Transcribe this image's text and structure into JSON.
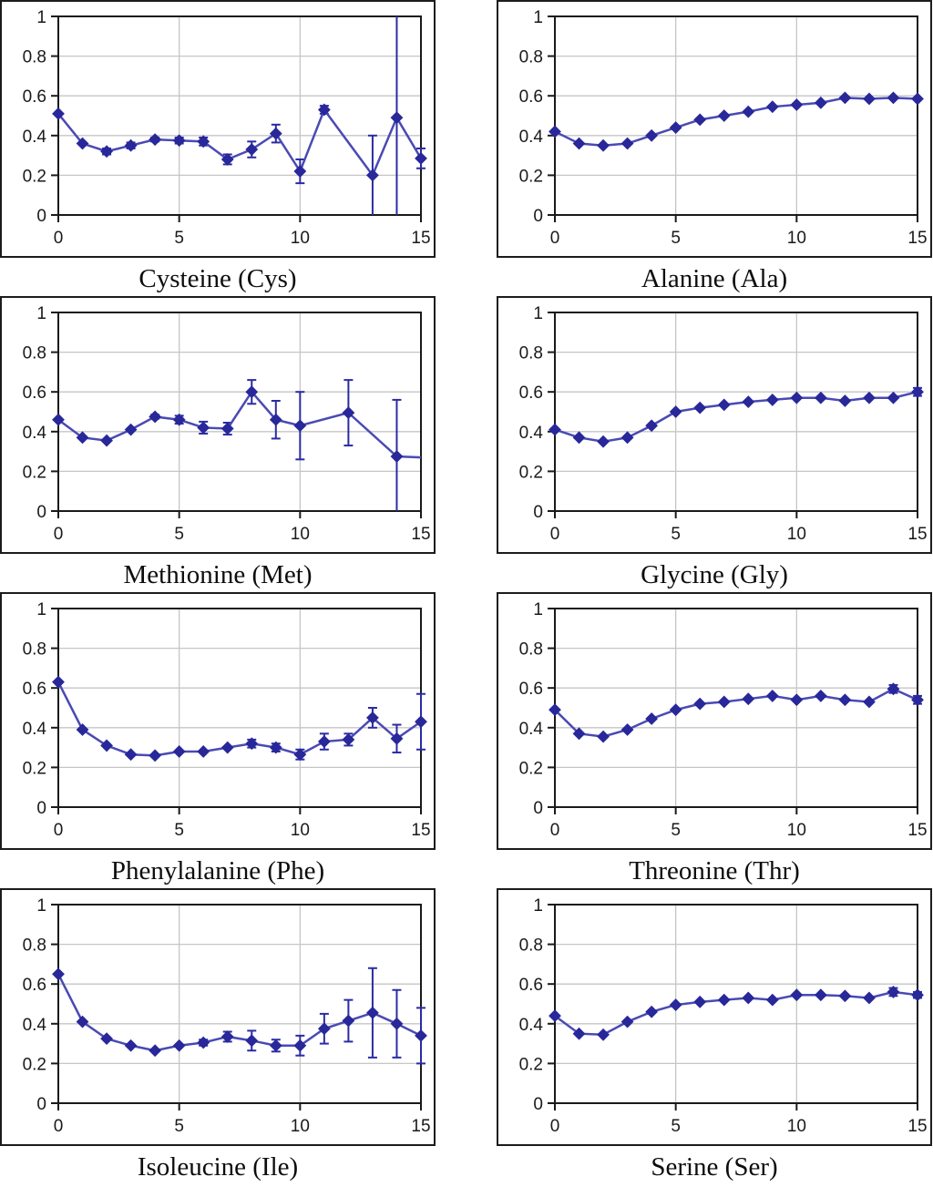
{
  "colors": {
    "marker": "#28289A",
    "line": "#4A4AB4",
    "error_bar": "#2B2BA4",
    "grid": "#C6C6C6",
    "axis": "#1A1A1A",
    "tick_label": "#1A1A1A"
  },
  "chart_data": [
    {
      "type": "line",
      "title": "Cysteine (Cys)",
      "xlabel": "",
      "ylabel": "",
      "xlim": [
        0,
        15
      ],
      "ylim": [
        0,
        1
      ],
      "xticks": [
        0,
        5,
        10,
        15
      ],
      "yticks": [
        0,
        0.2,
        0.4,
        0.6,
        0.8,
        1
      ],
      "grid": true,
      "marker": "diamond",
      "error_bars": true,
      "legend": "none",
      "points": [
        {
          "x": 0,
          "y": 0.51,
          "e": 0
        },
        {
          "x": 1,
          "y": 0.36,
          "e": 0
        },
        {
          "x": 2,
          "y": 0.32,
          "e": 0.015
        },
        {
          "x": 3,
          "y": 0.35,
          "e": 0.015
        },
        {
          "x": 4,
          "y": 0.38,
          "e": 0.01
        },
        {
          "x": 5,
          "y": 0.375,
          "e": 0.015
        },
        {
          "x": 6,
          "y": 0.37,
          "e": 0.02
        },
        {
          "x": 7,
          "y": 0.28,
          "e": 0.025
        },
        {
          "x": 8,
          "y": 0.33,
          "e": 0.04
        },
        {
          "x": 9,
          "y": 0.41,
          "e": 0.045
        },
        {
          "x": 10,
          "y": 0.22,
          "e": 0.06
        },
        {
          "x": 11,
          "y": 0.53,
          "e": 0.02
        },
        {
          "x": 13,
          "y": 0.2,
          "e": 0.2
        },
        {
          "x": 14,
          "y": 0.49,
          "e": 0.51
        },
        {
          "x": 15,
          "y": 0.285,
          "e": 0.05
        }
      ]
    },
    {
      "type": "line",
      "title": "Alanine (Ala)",
      "xlabel": "",
      "ylabel": "",
      "xlim": [
        0,
        15
      ],
      "ylim": [
        0,
        1
      ],
      "xticks": [
        0,
        5,
        10,
        15
      ],
      "yticks": [
        0,
        0.2,
        0.4,
        0.6,
        0.8,
        1
      ],
      "grid": true,
      "marker": "diamond",
      "error_bars": true,
      "legend": "none",
      "points": [
        {
          "x": 0,
          "y": 0.42,
          "e": 0
        },
        {
          "x": 1,
          "y": 0.36,
          "e": 0
        },
        {
          "x": 2,
          "y": 0.35,
          "e": 0
        },
        {
          "x": 3,
          "y": 0.36,
          "e": 0
        },
        {
          "x": 4,
          "y": 0.4,
          "e": 0
        },
        {
          "x": 5,
          "y": 0.44,
          "e": 0
        },
        {
          "x": 6,
          "y": 0.48,
          "e": 0
        },
        {
          "x": 7,
          "y": 0.5,
          "e": 0
        },
        {
          "x": 8,
          "y": 0.52,
          "e": 0
        },
        {
          "x": 9,
          "y": 0.545,
          "e": 0
        },
        {
          "x": 10,
          "y": 0.555,
          "e": 0
        },
        {
          "x": 11,
          "y": 0.565,
          "e": 0
        },
        {
          "x": 12,
          "y": 0.59,
          "e": 0
        },
        {
          "x": 13,
          "y": 0.585,
          "e": 0
        },
        {
          "x": 14,
          "y": 0.59,
          "e": 0
        },
        {
          "x": 15,
          "y": 0.585,
          "e": 0
        }
      ]
    },
    {
      "type": "line",
      "title": "Methionine (Met)",
      "xlabel": "",
      "ylabel": "",
      "xlim": [
        0,
        15
      ],
      "ylim": [
        0,
        1
      ],
      "xticks": [
        0,
        5,
        10,
        15
      ],
      "yticks": [
        0,
        0.2,
        0.4,
        0.6,
        0.8,
        1
      ],
      "grid": true,
      "marker": "diamond",
      "error_bars": true,
      "legend": "none",
      "points": [
        {
          "x": 0,
          "y": 0.46,
          "e": 0
        },
        {
          "x": 1,
          "y": 0.37,
          "e": 0
        },
        {
          "x": 2,
          "y": 0.355,
          "e": 0
        },
        {
          "x": 3,
          "y": 0.41,
          "e": 0
        },
        {
          "x": 4,
          "y": 0.475,
          "e": 0.01
        },
        {
          "x": 5,
          "y": 0.46,
          "e": 0.02
        },
        {
          "x": 6,
          "y": 0.42,
          "e": 0.03
        },
        {
          "x": 7,
          "y": 0.415,
          "e": 0.03
        },
        {
          "x": 8,
          "y": 0.6,
          "e": 0.06
        },
        {
          "x": 9,
          "y": 0.46,
          "e": 0.095
        },
        {
          "x": 10,
          "y": 0.43,
          "e": 0.17
        },
        {
          "x": 12,
          "y": 0.495,
          "e": 0.165
        },
        {
          "x": 14,
          "y": 0.275,
          "e": 0.285
        },
        {
          "x": 15,
          "y": 0.27,
          "e": 0,
          "m": false
        }
      ]
    },
    {
      "type": "line",
      "title": "Glycine (Gly)",
      "xlabel": "",
      "ylabel": "",
      "xlim": [
        0,
        15
      ],
      "ylim": [
        0,
        1
      ],
      "xticks": [
        0,
        5,
        10,
        15
      ],
      "yticks": [
        0,
        0.2,
        0.4,
        0.6,
        0.8,
        1
      ],
      "grid": true,
      "marker": "diamond",
      "error_bars": true,
      "legend": "none",
      "points": [
        {
          "x": 0,
          "y": 0.41,
          "e": 0
        },
        {
          "x": 1,
          "y": 0.37,
          "e": 0
        },
        {
          "x": 2,
          "y": 0.35,
          "e": 0
        },
        {
          "x": 3,
          "y": 0.37,
          "e": 0
        },
        {
          "x": 4,
          "y": 0.43,
          "e": 0
        },
        {
          "x": 5,
          "y": 0.5,
          "e": 0
        },
        {
          "x": 6,
          "y": 0.52,
          "e": 0
        },
        {
          "x": 7,
          "y": 0.535,
          "e": 0
        },
        {
          "x": 8,
          "y": 0.55,
          "e": 0
        },
        {
          "x": 9,
          "y": 0.56,
          "e": 0
        },
        {
          "x": 10,
          "y": 0.57,
          "e": 0
        },
        {
          "x": 11,
          "y": 0.57,
          "e": 0
        },
        {
          "x": 12,
          "y": 0.555,
          "e": 0
        },
        {
          "x": 13,
          "y": 0.57,
          "e": 0
        },
        {
          "x": 14,
          "y": 0.57,
          "e": 0
        },
        {
          "x": 15,
          "y": 0.6,
          "e": 0.02
        }
      ]
    },
    {
      "type": "line",
      "title": "Phenylalanine (Phe)",
      "xlabel": "",
      "ylabel": "",
      "xlim": [
        0,
        15
      ],
      "ylim": [
        0,
        1
      ],
      "xticks": [
        0,
        5,
        10,
        15
      ],
      "yticks": [
        0,
        0.2,
        0.4,
        0.6,
        0.8,
        1
      ],
      "grid": true,
      "marker": "diamond",
      "error_bars": true,
      "legend": "none",
      "points": [
        {
          "x": 0,
          "y": 0.63,
          "e": 0
        },
        {
          "x": 1,
          "y": 0.39,
          "e": 0
        },
        {
          "x": 2,
          "y": 0.31,
          "e": 0
        },
        {
          "x": 3,
          "y": 0.265,
          "e": 0
        },
        {
          "x": 4,
          "y": 0.26,
          "e": 0
        },
        {
          "x": 5,
          "y": 0.28,
          "e": 0
        },
        {
          "x": 6,
          "y": 0.28,
          "e": 0
        },
        {
          "x": 7,
          "y": 0.3,
          "e": 0
        },
        {
          "x": 8,
          "y": 0.32,
          "e": 0.02
        },
        {
          "x": 9,
          "y": 0.3,
          "e": 0.02
        },
        {
          "x": 10,
          "y": 0.265,
          "e": 0.025
        },
        {
          "x": 11,
          "y": 0.33,
          "e": 0.04
        },
        {
          "x": 12,
          "y": 0.34,
          "e": 0.03
        },
        {
          "x": 13,
          "y": 0.45,
          "e": 0.05
        },
        {
          "x": 14,
          "y": 0.345,
          "e": 0.07
        },
        {
          "x": 15,
          "y": 0.43,
          "e": 0.14
        }
      ]
    },
    {
      "type": "line",
      "title": "Threonine (Thr)",
      "xlabel": "",
      "ylabel": "",
      "xlim": [
        0,
        15
      ],
      "ylim": [
        0,
        1
      ],
      "xticks": [
        0,
        5,
        10,
        15
      ],
      "yticks": [
        0,
        0.2,
        0.4,
        0.6,
        0.8,
        1
      ],
      "grid": true,
      "marker": "diamond",
      "error_bars": true,
      "legend": "none",
      "points": [
        {
          "x": 0,
          "y": 0.49,
          "e": 0
        },
        {
          "x": 1,
          "y": 0.37,
          "e": 0
        },
        {
          "x": 2,
          "y": 0.355,
          "e": 0
        },
        {
          "x": 3,
          "y": 0.39,
          "e": 0
        },
        {
          "x": 4,
          "y": 0.445,
          "e": 0
        },
        {
          "x": 5,
          "y": 0.49,
          "e": 0
        },
        {
          "x": 6,
          "y": 0.52,
          "e": 0
        },
        {
          "x": 7,
          "y": 0.53,
          "e": 0
        },
        {
          "x": 8,
          "y": 0.545,
          "e": 0
        },
        {
          "x": 9,
          "y": 0.56,
          "e": 0
        },
        {
          "x": 10,
          "y": 0.54,
          "e": 0
        },
        {
          "x": 11,
          "y": 0.56,
          "e": 0
        },
        {
          "x": 12,
          "y": 0.54,
          "e": 0
        },
        {
          "x": 13,
          "y": 0.53,
          "e": 0
        },
        {
          "x": 14,
          "y": 0.595,
          "e": 0.02
        },
        {
          "x": 15,
          "y": 0.54,
          "e": 0.02
        }
      ]
    },
    {
      "type": "line",
      "title": "Isoleucine (Ile)",
      "xlabel": "",
      "ylabel": "",
      "xlim": [
        0,
        15
      ],
      "ylim": [
        0,
        1
      ],
      "xticks": [
        0,
        5,
        10,
        15
      ],
      "yticks": [
        0,
        0.2,
        0.4,
        0.6,
        0.8,
        1
      ],
      "grid": true,
      "marker": "diamond",
      "error_bars": true,
      "legend": "none",
      "points": [
        {
          "x": 0,
          "y": 0.65,
          "e": 0
        },
        {
          "x": 1,
          "y": 0.41,
          "e": 0
        },
        {
          "x": 2,
          "y": 0.325,
          "e": 0
        },
        {
          "x": 3,
          "y": 0.29,
          "e": 0
        },
        {
          "x": 4,
          "y": 0.265,
          "e": 0
        },
        {
          "x": 5,
          "y": 0.29,
          "e": 0
        },
        {
          "x": 6,
          "y": 0.305,
          "e": 0.015
        },
        {
          "x": 7,
          "y": 0.335,
          "e": 0.025
        },
        {
          "x": 8,
          "y": 0.315,
          "e": 0.05
        },
        {
          "x": 9,
          "y": 0.29,
          "e": 0.03
        },
        {
          "x": 10,
          "y": 0.29,
          "e": 0.05
        },
        {
          "x": 11,
          "y": 0.375,
          "e": 0.075
        },
        {
          "x": 12,
          "y": 0.415,
          "e": 0.105
        },
        {
          "x": 13,
          "y": 0.455,
          "e": 0.225
        },
        {
          "x": 14,
          "y": 0.4,
          "e": 0.17
        },
        {
          "x": 15,
          "y": 0.34,
          "e": 0.14
        }
      ]
    },
    {
      "type": "line",
      "title": "Serine (Ser)",
      "xlabel": "",
      "ylabel": "",
      "xlim": [
        0,
        15
      ],
      "ylim": [
        0,
        1
      ],
      "xticks": [
        0,
        5,
        10,
        15
      ],
      "yticks": [
        0,
        0.2,
        0.4,
        0.6,
        0.8,
        1
      ],
      "grid": true,
      "marker": "diamond",
      "error_bars": true,
      "legend": "none",
      "points": [
        {
          "x": 0,
          "y": 0.44,
          "e": 0
        },
        {
          "x": 1,
          "y": 0.35,
          "e": 0
        },
        {
          "x": 2,
          "y": 0.345,
          "e": 0
        },
        {
          "x": 3,
          "y": 0.41,
          "e": 0
        },
        {
          "x": 4,
          "y": 0.46,
          "e": 0
        },
        {
          "x": 5,
          "y": 0.495,
          "e": 0
        },
        {
          "x": 6,
          "y": 0.51,
          "e": 0
        },
        {
          "x": 7,
          "y": 0.52,
          "e": 0
        },
        {
          "x": 8,
          "y": 0.53,
          "e": 0
        },
        {
          "x": 9,
          "y": 0.52,
          "e": 0
        },
        {
          "x": 10,
          "y": 0.545,
          "e": 0
        },
        {
          "x": 11,
          "y": 0.545,
          "e": 0
        },
        {
          "x": 12,
          "y": 0.54,
          "e": 0
        },
        {
          "x": 13,
          "y": 0.53,
          "e": 0
        },
        {
          "x": 14,
          "y": 0.56,
          "e": 0.02
        },
        {
          "x": 15,
          "y": 0.545,
          "e": 0.015
        }
      ]
    }
  ]
}
